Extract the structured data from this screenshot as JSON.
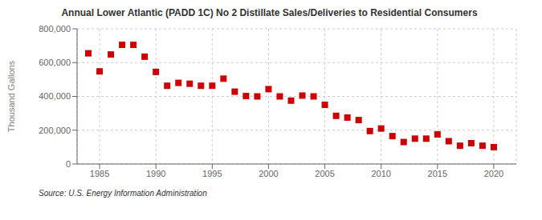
{
  "chart_data": {
    "type": "scatter",
    "title": "Annual Lower Atlantic (PADD 1C) No 2 Distillate Sales/Deliveries to Residential Consumers",
    "ylabel": "Thousand Gallons",
    "annotations": [
      "Source: U.S. Energy Information Administration"
    ],
    "x": [
      1984,
      1985,
      1986,
      1987,
      1988,
      1989,
      1990,
      1991,
      1992,
      1993,
      1994,
      1995,
      1996,
      1997,
      1998,
      1999,
      2000,
      2001,
      2002,
      2003,
      2004,
      2005,
      2006,
      2007,
      2008,
      2009,
      2010,
      2011,
      2012,
      2013,
      2014,
      2015,
      2016,
      2017,
      2018,
      2019,
      2020
    ],
    "values": [
      655000,
      548000,
      648000,
      705000,
      705000,
      635000,
      545000,
      463000,
      480000,
      475000,
      463000,
      463000,
      505000,
      428000,
      402000,
      400000,
      443000,
      400000,
      375000,
      405000,
      400000,
      350000,
      285000,
      275000,
      260000,
      195000,
      210000,
      165000,
      130000,
      150000,
      150000,
      175000,
      135000,
      108000,
      123000,
      108000,
      100000
    ],
    "color": "#cc0000",
    "marker": "square",
    "xlim": [
      1983,
      2022
    ],
    "ylim": [
      0,
      800000
    ],
    "xticks": [
      1985,
      1990,
      1995,
      2000,
      2005,
      2010,
      2015,
      2020
    ],
    "yticks": [
      0,
      {
        "value": 200000,
        "label": "200,000"
      },
      {
        "value": 400000,
        "label": "400,000"
      },
      {
        "value": 600000,
        "label": "600,000"
      },
      {
        "value": 800000,
        "label": "800,000"
      }
    ],
    "grid": true
  }
}
